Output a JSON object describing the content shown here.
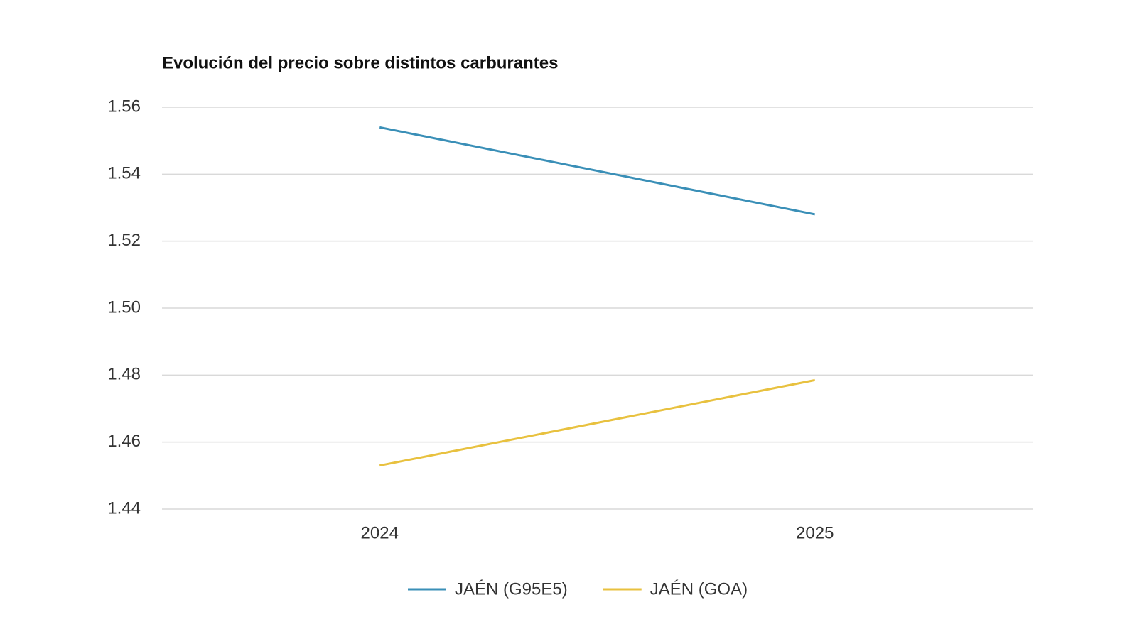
{
  "chart_data": {
    "type": "line",
    "title": "Evolución del precio sobre distintos carburantes",
    "categories": [
      "2024",
      "2025"
    ],
    "series": [
      {
        "name": "JAÉN (G95E5)",
        "color": "#3a8fb7",
        "values": [
          1.554,
          1.528
        ]
      },
      {
        "name": "JAÉN (GOA)",
        "color": "#e8c13f",
        "values": [
          1.453,
          1.4785
        ]
      }
    ],
    "ylim": [
      1.44,
      1.56
    ],
    "yticks": [
      1.44,
      1.46,
      1.48,
      {
        "value": 1.5,
        "label": "1.50"
      },
      1.52,
      1.54,
      1.56
    ],
    "grid": true,
    "legend": "bottom"
  }
}
